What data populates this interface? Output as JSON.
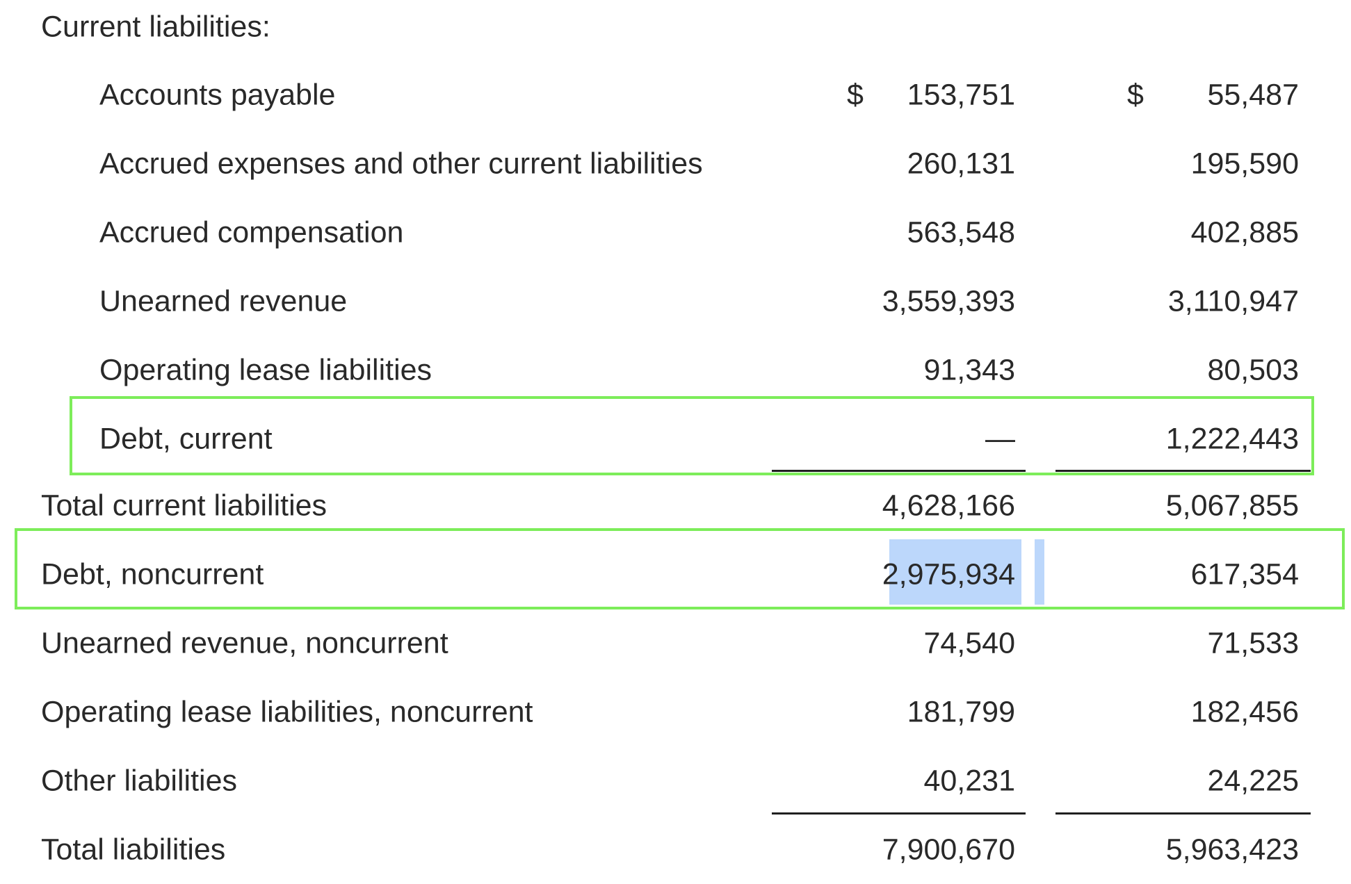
{
  "section_header": "Current liabilities:",
  "currency_symbol": "$",
  "rows": [
    {
      "label": "Accounts payable",
      "col1": "153,751",
      "col2": "55,487"
    },
    {
      "label": "Accrued expenses and other current liabilities",
      "col1": "260,131",
      "col2": "195,590"
    },
    {
      "label": "Accrued compensation",
      "col1": "563,548",
      "col2": "402,885"
    },
    {
      "label": "Unearned revenue",
      "col1": "3,559,393",
      "col2": "3,110,947"
    },
    {
      "label": "Operating lease liabilities",
      "col1": "91,343",
      "col2": "80,503"
    },
    {
      "label": "Debt, current",
      "col1": "—",
      "col2": "1,222,443"
    },
    {
      "label": "Total current liabilities",
      "col1": "4,628,166",
      "col2": "5,067,855"
    },
    {
      "label": "Debt, noncurrent",
      "col1": "2,975,934",
      "col2": "617,354"
    },
    {
      "label": "Unearned revenue, noncurrent",
      "col1": "74,540",
      "col2": "71,533"
    },
    {
      "label": "Operating lease liabilities, noncurrent",
      "col1": "181,799",
      "col2": "182,456"
    },
    {
      "label": "Other liabilities",
      "col1": "40,231",
      "col2": "24,225"
    },
    {
      "label": "Total liabilities",
      "col1": "7,900,670",
      "col2": "5,963,423"
    }
  ],
  "colors": {
    "text": "#292929",
    "highlight_box": "#7ded5a",
    "selection": "#bcd7fb",
    "rule": "#1f1f1f"
  }
}
